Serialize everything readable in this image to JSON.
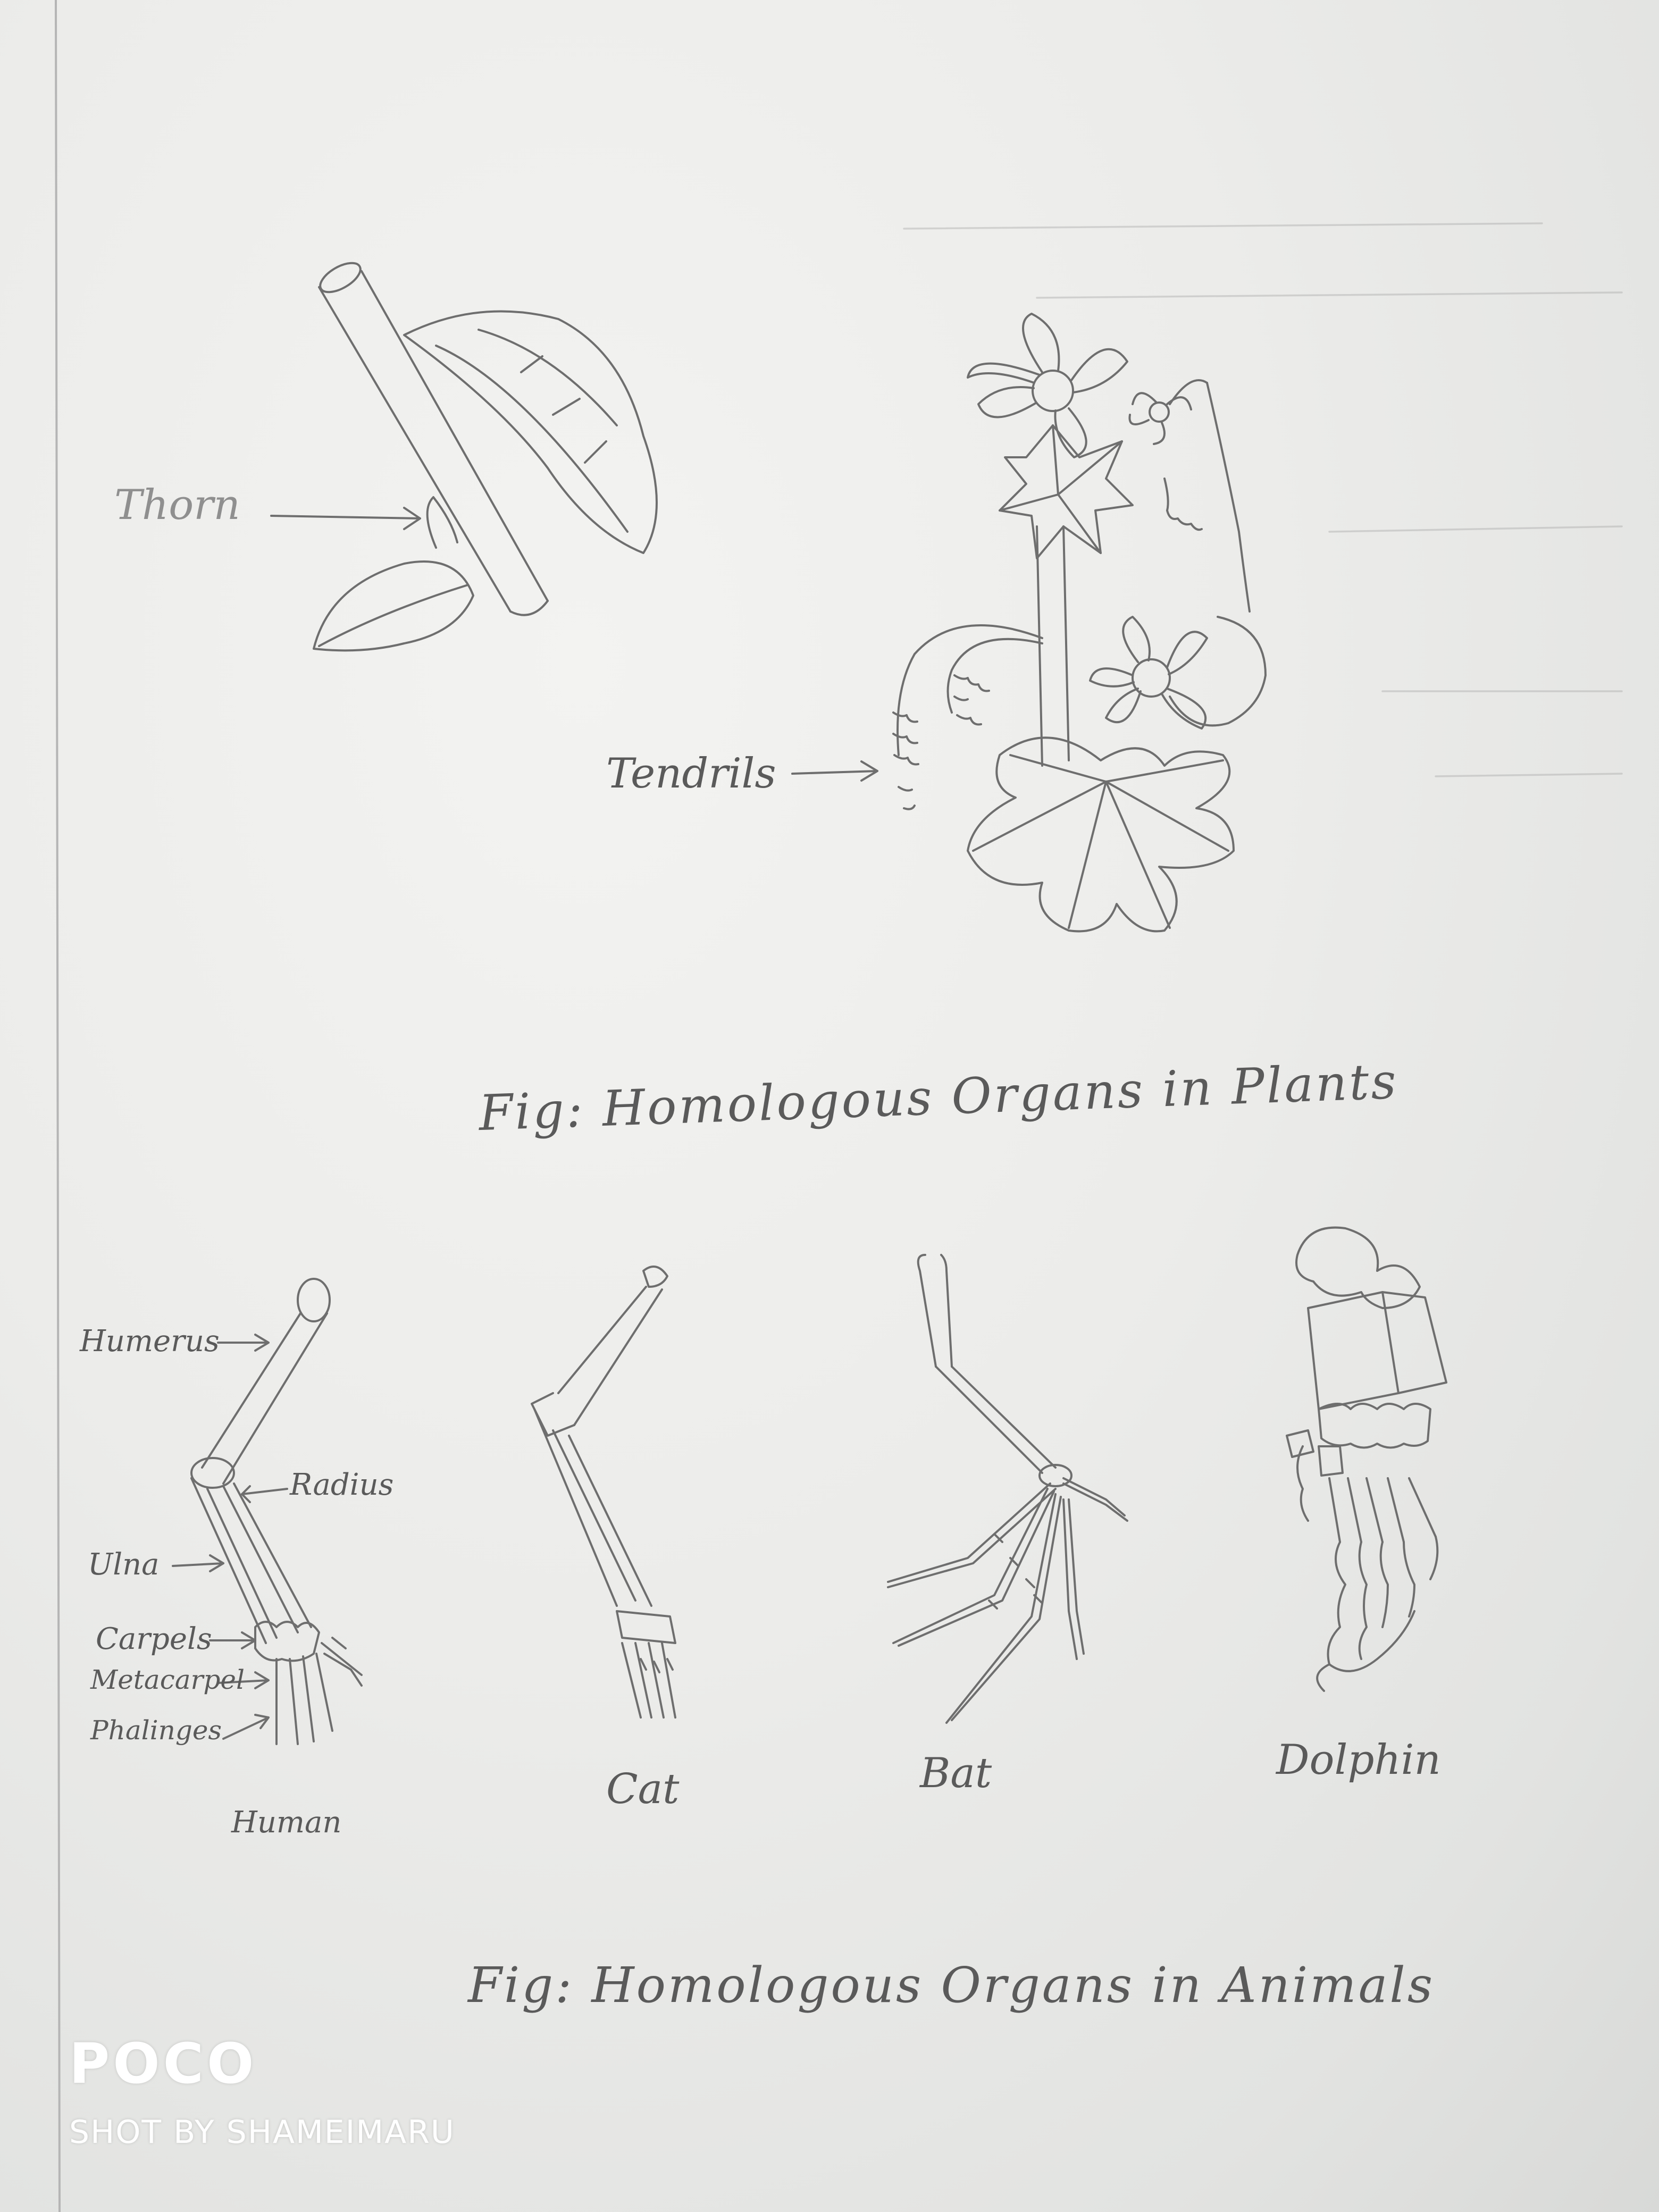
{
  "plants": {
    "labels": {
      "thorn": "Thorn",
      "tendrils": "Tendrils"
    },
    "caption": "Fig: Homologous Organs in Plants"
  },
  "animals": {
    "human_labels": {
      "humerus": "Humerus",
      "radius": "Radius",
      "ulna": "Ulna",
      "carpels": "Carpels",
      "metacarpel": "Metacarpel",
      "phalinges": "Phalinges"
    },
    "names": {
      "human": "Human",
      "cat": "Cat",
      "bat": "Bat",
      "dolphin": "Dolphin"
    },
    "caption": "Fig: Homologous Organs in Animals"
  },
  "watermark": {
    "brand": "POCO",
    "credit": "SHOT BY SHAMEIMARU"
  }
}
